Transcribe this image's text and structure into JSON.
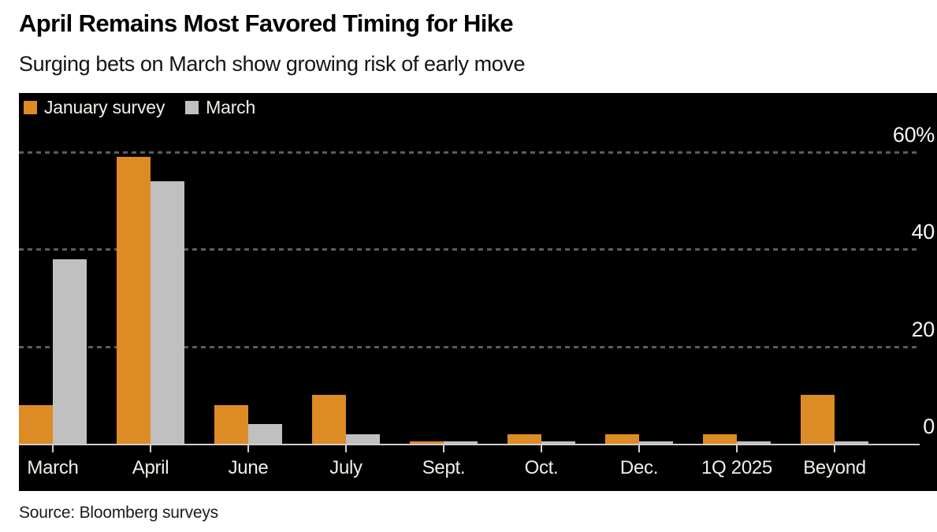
{
  "header": {
    "title": "April Remains Most Favored Timing for Hike",
    "subtitle": "Surging bets on March show growing risk of early move"
  },
  "legend": [
    {
      "label": "January survey",
      "swatch": "orange-square",
      "color": "#DD8B25"
    },
    {
      "label": "March",
      "swatch": "gray-square",
      "color": "#C0C0C0"
    }
  ],
  "chart_data": {
    "type": "bar",
    "title": "April Remains Most Favored Timing for Hike",
    "subtitle": "Surging bets on March show growing risk of early move",
    "categories": [
      "March",
      "April",
      "June",
      "July",
      "Sept.",
      "Oct.",
      "Dec.",
      "1Q 2025",
      "Beyond"
    ],
    "series": [
      {
        "name": "January survey",
        "color": "#DD8B25",
        "values": [
          8,
          59,
          8,
          10,
          0.5,
          2,
          2,
          2,
          10
        ]
      },
      {
        "name": "March",
        "color": "#C0C0C0",
        "values": [
          38,
          54,
          4,
          2,
          0.5,
          0.5,
          0.5,
          0.5,
          0.5
        ]
      }
    ],
    "xlabel": "",
    "ylabel": "",
    "unit": "%",
    "ylim": [
      0,
      62
    ],
    "y_ticks": [
      {
        "value": 0,
        "label": "0"
      },
      {
        "value": 20,
        "label": "20"
      },
      {
        "value": 40,
        "label": "40"
      },
      {
        "value": 60,
        "label": "60%"
      }
    ],
    "grid": "horizontal-dashed",
    "legend_position": "top-left",
    "plot_background": "#000000"
  },
  "colors": {
    "accent_orange": "#DD8B25",
    "series_gray": "#C0C0C0",
    "grid_gray": "#5C5C5C",
    "axis_gray": "#CFCFCF",
    "panel_bg": "#000000",
    "light_text": "#F2EFE9"
  },
  "source": "Source: Bloomberg surveys"
}
